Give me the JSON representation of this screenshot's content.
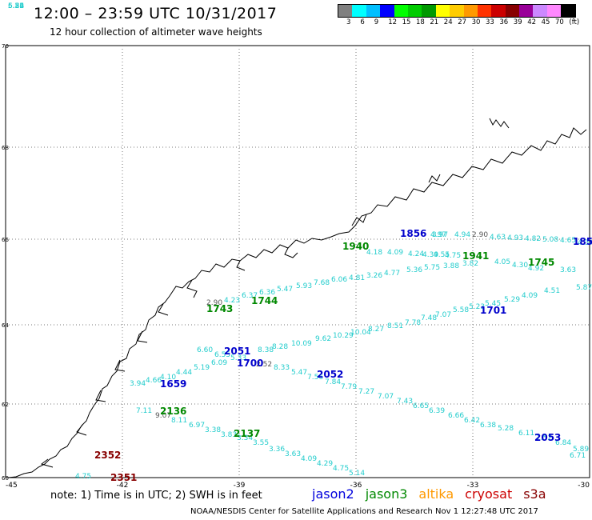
{
  "header": {
    "title": "12:00 – 23:59 UTC 10/31/2017",
    "subtitle": "12 hour collection of altimeter wave heights"
  },
  "colorbar": {
    "colors": [
      "#808080",
      "#00ffff",
      "#00bfff",
      "#0000ff",
      "#00ff00",
      "#00cc00",
      "#009900",
      "#ffff00",
      "#ffcc00",
      "#ff9900",
      "#ff3300",
      "#cc0000",
      "#880000",
      "#990099",
      "#cc88ff",
      "#ff88ff",
      "#000000"
    ],
    "labels": [
      "3",
      "6",
      "9",
      "12",
      "15",
      "18",
      "21",
      "24",
      "27",
      "30",
      "33",
      "36",
      "39",
      "42",
      "45",
      "70",
      "(ft)"
    ]
  },
  "axes": {
    "lat_labels": [
      "70",
      "68",
      "66",
      "64",
      "62",
      "60"
    ],
    "lon_labels": [
      "-45",
      "-42",
      "-39",
      "-36",
      "-33",
      "-30"
    ]
  },
  "passes": [
    {
      "time": "1856",
      "color": "#0000cc"
    },
    {
      "time": "1940",
      "color": "#008800"
    },
    {
      "time": "1941",
      "color": "#008800"
    },
    {
      "time": "1745",
      "color": "#008800"
    },
    {
      "time": "185",
      "color": "#0000cc"
    },
    {
      "time": "1743",
      "color": "#008800"
    },
    {
      "time": "1744",
      "color": "#008800"
    },
    {
      "time": "1701",
      "color": "#0000cc"
    },
    {
      "time": "2051",
      "color": "#0000cc"
    },
    {
      "time": "1700",
      "color": "#0000cc"
    },
    {
      "time": "2052",
      "color": "#0000cc"
    },
    {
      "time": "1659",
      "color": "#0000cc"
    },
    {
      "time": "2136",
      "color": "#008800"
    },
    {
      "time": "2137",
      "color": "#008800"
    },
    {
      "time": "2053",
      "color": "#0000cc"
    },
    {
      "time": "2352",
      "color": "#880000"
    },
    {
      "time": "2351",
      "color": "#880000"
    }
  ],
  "swh_values": [
    "4.97",
    "4.94",
    "2.90",
    "4.63",
    "4.93",
    "4.82",
    "5.08",
    "3.97",
    "4.65",
    "4.34",
    "4.18",
    "4.09",
    "4.24",
    "4.39",
    "4.55",
    "4.75",
    "4.05",
    "2.90",
    "4.23",
    "6.37",
    "6.36",
    "5.47",
    "5.93",
    "7.68",
    "6.06",
    "4.81",
    "3.26",
    "4.77",
    "5.36",
    "5.75",
    "3.88",
    "3.82",
    "4.30",
    "4.92",
    "3.63",
    "5.87",
    "4.51",
    "4.09",
    "5.29",
    "5.45",
    "5.23",
    "5.58",
    "7.07",
    "7.48",
    "7.78",
    "8.51",
    "8.27",
    "10.04",
    "10.29",
    "9.62",
    "10.09",
    "8.28",
    "8.38",
    "6.60",
    "6.55",
    "5.33",
    "6.09",
    "5.19",
    "4.44",
    "4.10",
    "4.66",
    "3.94",
    "2.52",
    "8.33",
    "5.47",
    "7.56",
    "7.84",
    "7.79",
    "7.27",
    "7.07",
    "7.43",
    "6.65",
    "6.39",
    "6.66",
    "6.42",
    "6.38",
    "5.28",
    "6.11",
    "7.52",
    "6.84",
    "5.89",
    "6.71",
    "7.11",
    "9.07",
    "8.11",
    "6.97",
    "3.38",
    "3.83",
    "3.34",
    "3.55",
    "3.36",
    "3.63",
    "4.09",
    "4.29",
    "4.75",
    "5.14",
    "4.75",
    "5.22",
    "5.84",
    "5.26",
    "6.52"
  ],
  "footer": {
    "note": "note: 1) Time is in UTC; 2) SWH is in feet",
    "credit": "NOAA/NESDIS Center for Satellite Applications and Research     Nov  1 12:27:48 UTC 2017"
  },
  "satellites": [
    {
      "name": "jason2",
      "color": "#0000dd"
    },
    {
      "name": "jason3",
      "color": "#008800"
    },
    {
      "name": "altika",
      "color": "#ff9900"
    },
    {
      "name": "cryosat",
      "color": "#cc0000"
    },
    {
      "name": "s3a",
      "color": "#880000"
    }
  ]
}
